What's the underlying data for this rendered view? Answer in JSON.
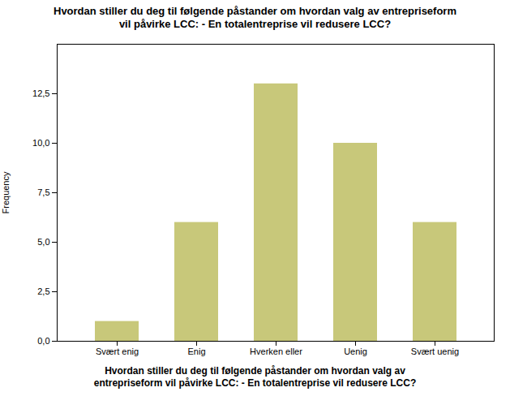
{
  "chart_data": {
    "type": "bar",
    "title": "Hvordan stiller du deg til følgende påstander om hvordan valg av entrepriseform\nvil påvirke LCC: - En totalentreprise vil redusere LCC?",
    "xlabel": "Hvordan stiller du deg til følgende påstander om hvordan valg av\nentrepriseform vil påvirke LCC: - En totalentreprise vil redusere LCC?",
    "ylabel": "Frequency",
    "categories": [
      "Svært enig",
      "Enig",
      "Hverken eller",
      "Uenig",
      "Svært uenig"
    ],
    "values": [
      1,
      6,
      13,
      10,
      6
    ],
    "color": "#c8c87a",
    "ylim": [
      0,
      15
    ],
    "yticks": [
      {
        "value": 0.0,
        "label": "0,0"
      },
      {
        "value": 2.5,
        "label": "2,5"
      },
      {
        "value": 5.0,
        "label": "5,0"
      },
      {
        "value": 7.5,
        "label": "7,5"
      },
      {
        "value": 10.0,
        "label": "10,0"
      },
      {
        "value": 12.5,
        "label": "12,5"
      }
    ],
    "grid": false
  }
}
